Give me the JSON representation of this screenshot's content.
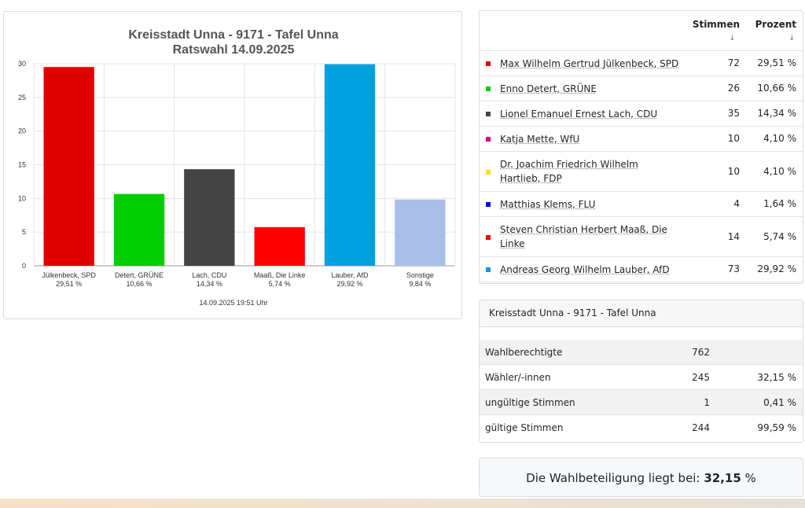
{
  "chart_data": {
    "type": "bar",
    "title": "Kreisstadt Unna - 9171 - Tafel Unna",
    "subtitle": "Ratswahl 14.09.2025",
    "categories": [
      "Jülkenbeck, SPD",
      "Detert, GRÜNE",
      "Lach, CDU",
      "Maaß, Die Linke",
      "Lauber, AfD",
      "Sonstige"
    ],
    "category_pct_labels": [
      "29,51 %",
      "10,66 %",
      "14,34 %",
      "5,74 %",
      "29,92 %",
      "9,84 %"
    ],
    "values": [
      29.51,
      10.66,
      14.34,
      5.74,
      29.92,
      9.84
    ],
    "colors": [
      "#e10000",
      "#00cc00",
      "#444444",
      "#ff0000",
      "#00a0e0",
      "#aabfe8"
    ],
    "yticks": [
      "0",
      "5",
      "10",
      "15",
      "20",
      "25",
      "30"
    ],
    "ylim": [
      0,
      30
    ],
    "grid": true,
    "timestamp": "14.09.2025 19:51 Uhr"
  },
  "results": {
    "header_votes": "Stimmen",
    "header_percent": "Prozent",
    "sort_arrow": "↓",
    "rows": [
      {
        "name": "Max Wilhelm Gertrud Jülkenbeck, SPD",
        "votes": "72",
        "percent": "29,51 %",
        "color": "#e10000"
      },
      {
        "name": "Enno Detert, GRÜNE",
        "votes": "26",
        "percent": "10,66 %",
        "color": "#00cc00"
      },
      {
        "name": "Lionel Emanuel Ernest Lach, CDU",
        "votes": "35",
        "percent": "14,34 %",
        "color": "#444444"
      },
      {
        "name": "Katja Mette, WfU",
        "votes": "10",
        "percent": "4,10 %",
        "color": "#e0008c"
      },
      {
        "name": "Dr. Joachim Friedrich Wilhelm Hartlieb, FDP",
        "votes": "10",
        "percent": "4,10 %",
        "color": "#ffe000"
      },
      {
        "name": "Matthias Klems, FLU",
        "votes": "4",
        "percent": "1,64 %",
        "color": "#0000ee"
      },
      {
        "name": "Steven Christian Herbert Maaß, Die Linke",
        "votes": "14",
        "percent": "5,74 %",
        "color": "#ee0000"
      },
      {
        "name": "Andreas Georg Wilhelm Lauber, AfD",
        "votes": "73",
        "percent": "29,92 %",
        "color": "#0099dd"
      }
    ]
  },
  "summary": {
    "title": "Kreisstadt Unna - 9171 - Tafel Unna",
    "rows": [
      {
        "label": "Wahlberechtigte",
        "value": "762",
        "percent": ""
      },
      {
        "label": "Wähler/-innen",
        "value": "245",
        "percent": "32,15 %"
      },
      {
        "label": "ungültige Stimmen",
        "value": "1",
        "percent": "0,41 %"
      },
      {
        "label": "gültige Stimmen",
        "value": "244",
        "percent": "99,59 %"
      }
    ]
  },
  "turnout": {
    "text": "Die Wahlbeteiligung liegt bei:",
    "value": "32,15",
    "unit": "%"
  }
}
